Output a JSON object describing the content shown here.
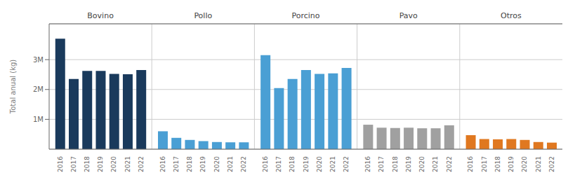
{
  "chart_data": {
    "type": "bar",
    "categories": [
      "2016",
      "2017",
      "2018",
      "2019",
      "2020",
      "2021",
      "2022"
    ],
    "series": [
      {
        "name": "Bovino",
        "color": "#1a3a5c",
        "values": [
          3700000,
          2350000,
          2620000,
          2620000,
          2520000,
          2510000,
          2650000
        ]
      },
      {
        "name": "Pollo",
        "color": "#4a9fd4",
        "values": [
          600000,
          380000,
          310000,
          270000,
          240000,
          230000,
          230000
        ]
      },
      {
        "name": "Porcino",
        "color": "#4a9fd4",
        "values": [
          3150000,
          2050000,
          2350000,
          2650000,
          2520000,
          2540000,
          2720000
        ]
      },
      {
        "name": "Pavo",
        "color": "#a0a0a0",
        "values": [
          820000,
          720000,
          710000,
          720000,
          700000,
          700000,
          800000
        ]
      },
      {
        "name": "Otros",
        "color": "#e07820",
        "values": [
          470000,
          340000,
          330000,
          340000,
          310000,
          240000,
          220000
        ]
      }
    ],
    "ylabel": "Total anual (kg)",
    "ylim": [
      0,
      4200000
    ],
    "yticks": [
      {
        "value": 1000000,
        "label": "1M"
      },
      {
        "value": 2000000,
        "label": "2M"
      },
      {
        "value": 3000000,
        "label": "3M"
      }
    ],
    "grid": true
  }
}
